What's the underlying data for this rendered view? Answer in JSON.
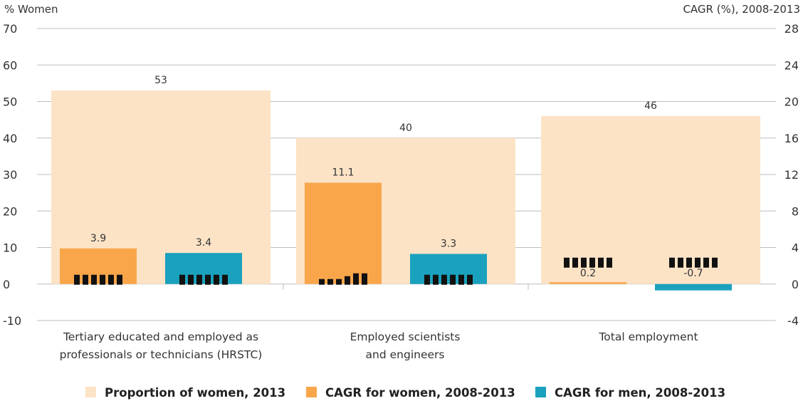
{
  "chart_data": {
    "type": "bar",
    "left_axis_title": "% Women",
    "right_axis_title": "CAGR (%), 2008-2013",
    "left_ylim": [
      -10,
      70
    ],
    "right_ylim": [
      -4,
      28
    ],
    "left_ticks": [
      "70",
      "60",
      "50",
      "40",
      "30",
      "20",
      "10",
      "0",
      "-10"
    ],
    "right_ticks": [
      "28",
      "24",
      "20",
      "16",
      "12",
      "8",
      "4",
      "0",
      "-4"
    ],
    "grid": true,
    "legend_position": "bottom",
    "categories": [
      {
        "lines": [
          "Tertiary educated and employed as",
          "professionals or technicians (HRSTC)"
        ]
      },
      {
        "lines": [
          "Employed scientists",
          "and engineers"
        ]
      },
      {
        "lines": [
          "Total employment"
        ]
      }
    ],
    "series": [
      {
        "name": "Proportion of women, 2013",
        "axis": "left",
        "color": "#FCE3C6",
        "values": [
          53,
          40,
          46
        ],
        "labels": [
          "53",
          "40",
          "46"
        ]
      },
      {
        "name": "CAGR for women, 2008-2013",
        "axis": "right",
        "color": "#F9A64A",
        "values": [
          3.9,
          11.1,
          0.2
        ],
        "labels": [
          "3.9",
          "11.1",
          "0.2"
        ],
        "trend_icons": [
          "flat",
          "rising",
          "flat"
        ]
      },
      {
        "name": "CAGR for men, 2008-2013",
        "axis": "right",
        "color": "#1AA1BE",
        "values": [
          3.4,
          3.3,
          -0.7
        ],
        "labels": [
          "3.4",
          "3.3",
          "-0.7"
        ],
        "trend_icons": [
          "flat",
          "flat",
          "flat"
        ]
      }
    ]
  }
}
